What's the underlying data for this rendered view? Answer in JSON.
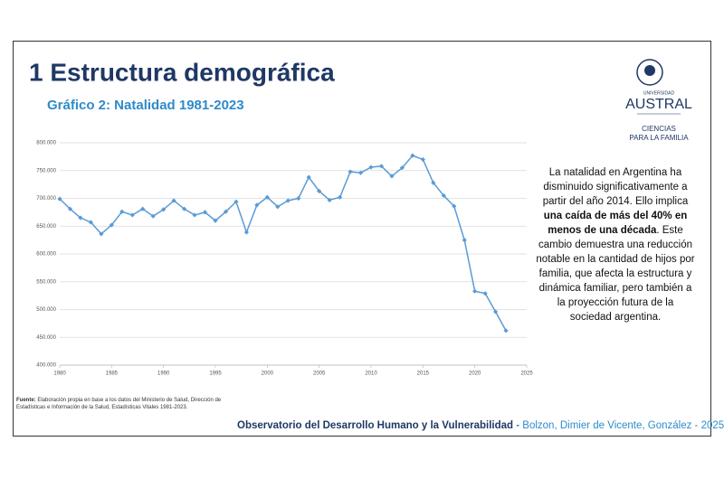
{
  "slide": {
    "title": "1 Estructura demográfica",
    "logo": {
      "university_small": "UNIVERSIDAD",
      "university": "AUSTRAL",
      "unit_line1": "CIENCIAS",
      "unit_line2": "PARA LA FAMILIA"
    },
    "text": [
      "La natalidad en Argentina ha disminuido significativamente a partir del año 2014. Ello implica ",
      "una caída de más del 40% en menos de una década",
      ". Este cambio demuestra una reducción notable en la cantidad de hijos por familia, que afecta la estructura y dinámica familiar, pero también a la proyección futura de la sociedad argentina."
    ],
    "source_label": "Fuente:",
    "source": " Elaboración propia en base a los datos del Ministerio de Salud, Dirección de Estadísticas e Información de la Salud, Estadísticas Vitales 1981-2023.",
    "footer": "Observatorio del Desarrollo Humano y la Vulnerabilidad",
    "footer_sep": " - ",
    "authors": "Bolzon, Dimier de Vicente, González - 2025"
  },
  "chart_data": {
    "type": "line",
    "title": "Gráfico 2: Natalidad 1981-2023",
    "color": "#5b9bd5",
    "grid": true,
    "x": [
      1980,
      1981,
      1982,
      1983,
      1984,
      1985,
      1986,
      1987,
      1988,
      1989,
      1990,
      1991,
      1992,
      1993,
      1994,
      1995,
      1996,
      1997,
      1998,
      1999,
      2000,
      2001,
      2002,
      2003,
      2004,
      2005,
      2006,
      2007,
      2008,
      2009,
      2010,
      2011,
      2012,
      2013,
      2014,
      2015,
      2016,
      2017,
      2018,
      2019,
      2020,
      2021,
      2022,
      2023
    ],
    "values": [
      699000,
      681000,
      665000,
      657000,
      636000,
      652000,
      676000,
      670000,
      681000,
      668000,
      680000,
      696000,
      681000,
      670000,
      675000,
      660000,
      676000,
      694000,
      639000,
      688000,
      702000,
      685000,
      696000,
      700000,
      738000,
      713000,
      697000,
      702000,
      748000,
      746000,
      756000,
      758000,
      740000,
      755000,
      777000,
      770000,
      728000,
      705000,
      686000,
      625000,
      533000,
      529000,
      496000,
      462000
    ],
    "xlim": [
      1980,
      2025
    ],
    "xticks": [
      1980,
      1985,
      1990,
      1995,
      2000,
      2005,
      2010,
      2015,
      2020,
      2025
    ],
    "ylim": [
      400000,
      800000
    ],
    "yticks": [
      {
        "value": 400000,
        "label": "400.000"
      },
      {
        "value": 450000,
        "label": "450.000"
      },
      {
        "value": 500000,
        "label": "500.000"
      },
      {
        "value": 550000,
        "label": "550.000"
      },
      {
        "value": 600000,
        "label": "600.000"
      },
      {
        "value": 650000,
        "label": "650.000"
      },
      {
        "value": 700000,
        "label": "700.000"
      },
      {
        "value": 750000,
        "label": "750.000"
      },
      {
        "value": 800000,
        "label": "800.000"
      }
    ]
  }
}
